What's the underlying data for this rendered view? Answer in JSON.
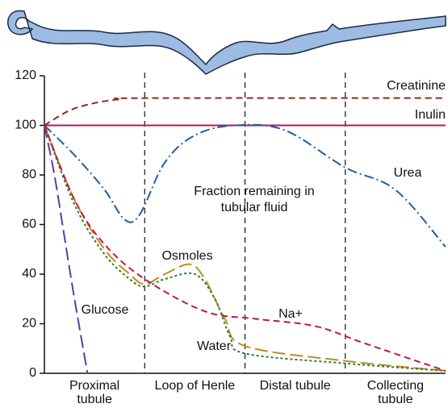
{
  "chart_data": {
    "type": "line",
    "annotation": "Fraction remaining in tubular fluid",
    "categories": [
      "Proximal tubule",
      "Loop of Henle",
      "Distal tubule",
      "Collecting tubule"
    ],
    "xlim": [
      0,
      4
    ],
    "ylim": [
      0,
      120
    ],
    "yticks": [
      0,
      20,
      40,
      60,
      80,
      100,
      120
    ],
    "series": [
      {
        "name": "Creatinine",
        "color": "#8b2d1e",
        "style": "dashed",
        "x": [
          0,
          0.25,
          0.5,
          0.75,
          1,
          4
        ],
        "values": [
          100,
          106,
          109,
          110.5,
          111,
          111
        ]
      },
      {
        "name": "Inulin",
        "color": "#b0195a",
        "style": "solid",
        "x": [
          0,
          4
        ],
        "values": [
          100,
          100
        ]
      },
      {
        "name": "Urea",
        "color": "#1f5f9e",
        "style": "dashdot",
        "x": [
          0,
          0.3,
          0.6,
          0.8,
          0.95,
          1.2,
          1.5,
          1.9,
          2.4,
          3.0,
          3.5,
          4
        ],
        "values": [
          100,
          88,
          74,
          62,
          64,
          85,
          96,
          100,
          98,
          83,
          74,
          51
        ]
      },
      {
        "name": "Glucose",
        "color": "#5a3fa0",
        "style": "longdash",
        "x": [
          0,
          0.1,
          0.2,
          0.3,
          0.43
        ],
        "values": [
          100,
          80,
          55,
          30,
          0
        ]
      },
      {
        "name": "Osmoles",
        "color": "#c58a1a",
        "style": "longdash",
        "x": [
          0,
          0.3,
          0.6,
          0.85,
          1.0,
          1.2,
          1.45,
          1.6,
          1.8,
          2.0,
          3.0,
          4
        ],
        "values": [
          100,
          70,
          50,
          40,
          36,
          40,
          44,
          38,
          22,
          11,
          5,
          1
        ]
      },
      {
        "name": "Na+",
        "color": "#2e7d32",
        "style": "dotted",
        "x": [
          0,
          0.3,
          0.6,
          0.85,
          1.0,
          1.2,
          1.5,
          1.7,
          1.85,
          2.0,
          3.0,
          4
        ],
        "values": [
          100,
          68,
          48,
          38,
          35,
          38,
          40,
          30,
          15,
          8,
          4,
          1
        ]
      },
      {
        "name": "Water",
        "color": "#c0174a",
        "style": "dashed",
        "x": [
          0,
          0.3,
          0.6,
          1.0,
          1.6,
          2.1,
          2.7,
          3.2,
          4
        ],
        "values": [
          100,
          70,
          52,
          38,
          25,
          22,
          19,
          12,
          1
        ]
      }
    ]
  }
}
